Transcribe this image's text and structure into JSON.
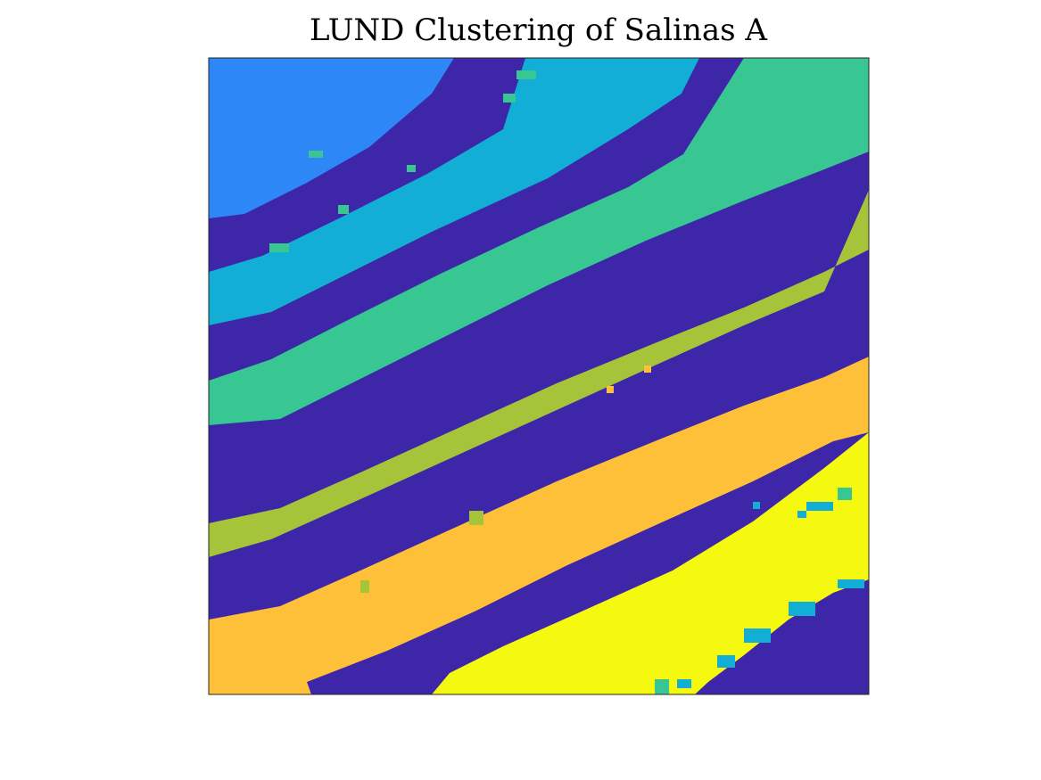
{
  "figure": {
    "title": "LUND Clustering of Salinas A"
  },
  "chart_data": {
    "type": "heatmap",
    "title": "LUND Clustering of Salinas A",
    "xlabel": "",
    "ylabel": "",
    "axes_visible": false,
    "grid": false,
    "legend": "none",
    "cluster_colors": {
      "1": "#3e26a8",
      "2": "#2e87f7",
      "3": "#13aed5",
      "4": "#38c793",
      "5": "#a6c43a",
      "6": "#fec039",
      "7": "#f5f90f"
    },
    "description_of_regions": [
      {
        "cluster": 2,
        "location": "top-left wedge"
      },
      {
        "cluster": 3,
        "location": "diagonal band below cluster 2"
      },
      {
        "cluster": 4,
        "location": "wide diagonal band through center and top-right"
      },
      {
        "cluster": 5,
        "location": "diagonal band below cluster 4"
      },
      {
        "cluster": 6,
        "location": "two diagonal bands in lower half"
      },
      {
        "cluster": 7,
        "location": "bottom-right wedge"
      },
      {
        "cluster": 1,
        "location": "thin separating stripes and bottom-right corner"
      }
    ]
  }
}
